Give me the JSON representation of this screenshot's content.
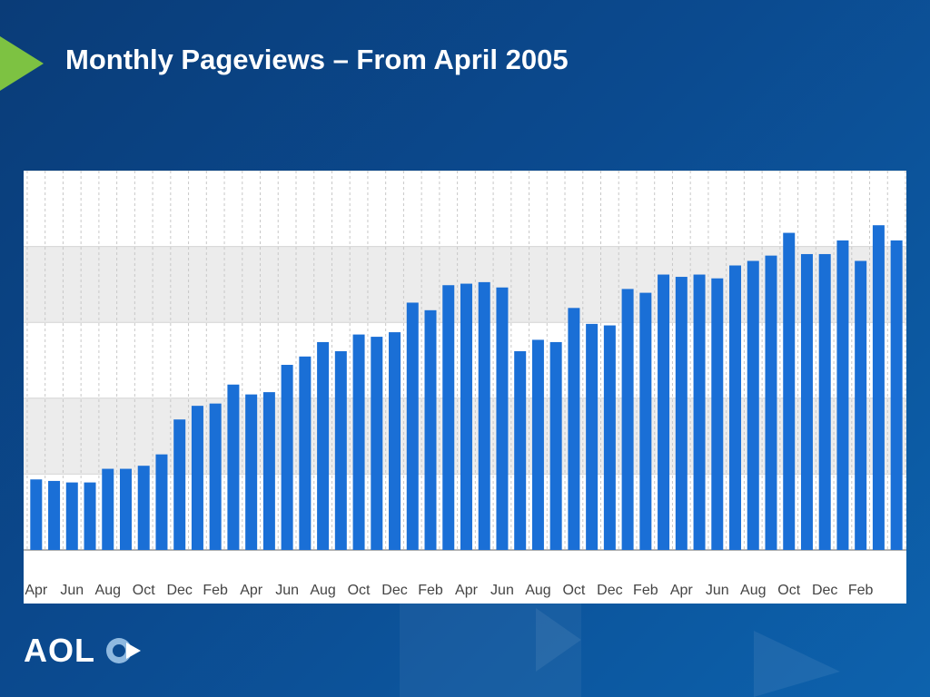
{
  "title": "Monthly Pageviews – From April 2005",
  "logo": "AOL",
  "chart_data": {
    "type": "bar",
    "categories": [
      "Apr",
      null,
      "Jun",
      null,
      "Aug",
      null,
      "Oct",
      null,
      "Dec",
      null,
      "Feb",
      null,
      "Apr",
      null,
      "Jun",
      null,
      "Aug",
      null,
      "Oct",
      null,
      "Dec",
      null,
      "Feb",
      null,
      "Apr",
      null,
      "Jun",
      null,
      "Aug",
      null,
      "Oct",
      null,
      "Dec",
      null,
      "Feb",
      null,
      "Apr",
      null,
      "Jun",
      null,
      "Aug",
      null,
      "Oct",
      null,
      "Dec",
      null,
      "Feb",
      null,
      null
    ],
    "values": [
      0.93,
      0.91,
      0.89,
      0.89,
      1.07,
      1.07,
      1.11,
      1.26,
      1.72,
      1.9,
      1.93,
      2.18,
      2.05,
      2.08,
      2.44,
      2.55,
      2.74,
      2.62,
      2.84,
      2.81,
      2.87,
      3.26,
      3.16,
      3.49,
      3.51,
      3.53,
      3.46,
      2.62,
      2.77,
      2.74,
      3.19,
      2.98,
      2.96,
      3.44,
      3.39,
      3.63,
      3.6,
      3.63,
      3.58,
      3.75,
      3.81,
      3.88,
      4.18,
      3.9,
      3.9,
      4.08,
      3.81,
      4.28,
      4.08
    ],
    "color": "#1a6fd6",
    "ylim": [
      0,
      5
    ],
    "yticks": [
      0,
      1,
      2,
      3,
      4,
      5
    ],
    "grid": true
  }
}
